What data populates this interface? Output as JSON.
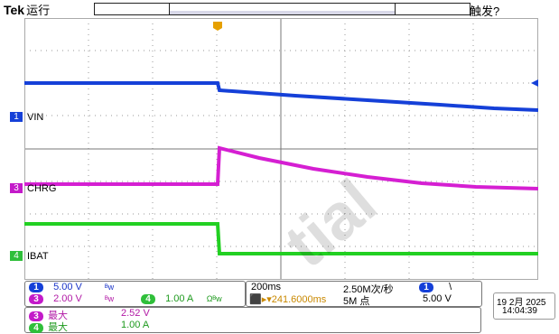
{
  "header": {
    "brand": "Tek",
    "status": "运行",
    "trigger_status": "触发?"
  },
  "channels": {
    "ch1": {
      "number": "1",
      "label": "VIN",
      "scale": "5.00 V",
      "color": "#1540d8"
    },
    "ch3": {
      "number": "3",
      "label": "CHRG",
      "scale": "2.00 V",
      "color": "#c31ac9"
    },
    "ch4": {
      "number": "4",
      "label": "IBAT",
      "scale": "1.00 A",
      "color": "#2fbf3a"
    }
  },
  "timebase": {
    "scale": "200ms",
    "position": "241.6000ms",
    "sample_rate": "2.50M次/秒",
    "record_length": "5M 点"
  },
  "trigger": {
    "source": "1",
    "slope": "\\",
    "level": "5.00 V"
  },
  "datetime": {
    "date": "19 2月 2025",
    "time": "14:04:39"
  },
  "measurements": [
    {
      "channel": "3",
      "name": "最大",
      "value": "2.52 V"
    },
    {
      "channel": "4",
      "name": "最大",
      "value": "1.00 A"
    }
  ],
  "watermark": "tial"
}
